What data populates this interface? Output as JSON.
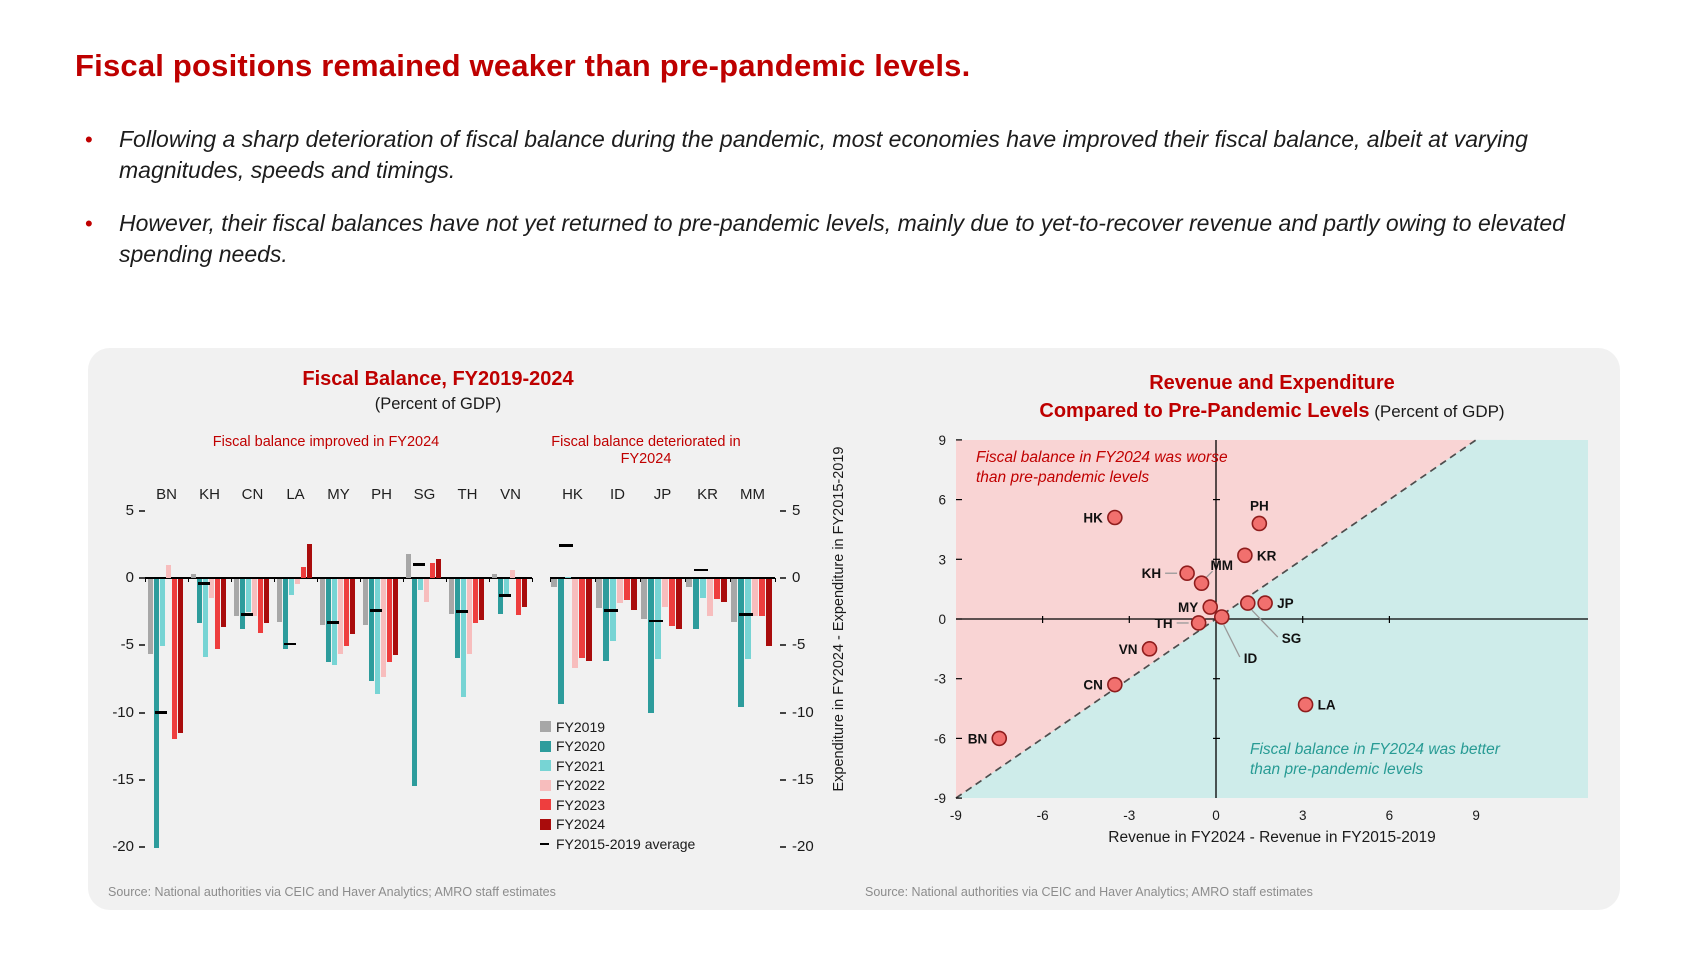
{
  "header": {
    "title": "Fiscal positions remained weaker than pre-pandemic levels.",
    "bullets": [
      "Following a sharp deterioration of fiscal balance during the pandemic, most economies have improved their fiscal balance, albeit at varying magnitudes, speeds and timings.",
      "However, their fiscal balances have not yet returned to pre-pandemic levels, mainly due to yet-to-recover revenue and partly owing to elevated spending needs."
    ]
  },
  "colors": {
    "accent_red": "#BE0000",
    "card_bg": "#F1F1F1",
    "fy2019": "#A7A7A7",
    "fy2020": "#2D9C9C",
    "fy2021": "#77D4D4",
    "fy2022": "#F7BDBD",
    "fy2023": "#EE3E3E",
    "fy2024": "#A90C0C",
    "average": "#000000",
    "worse_region": "#F9D4D4",
    "better_region": "#CEECEA",
    "marker_fill": "#F1706E",
    "marker_stroke": "#8F1D1D",
    "leader_line": "#999999"
  },
  "chart_data": [
    {
      "type": "bar",
      "title": "Fiscal Balance, FY2019-2024",
      "subtitle": "(Percent of GDP)",
      "ylim": [
        -20.5,
        5
      ],
      "yticks": [
        5,
        0,
        -5,
        -10,
        -15,
        -20
      ],
      "series": [
        "FY2019",
        "FY2020",
        "FY2021",
        "FY2022",
        "FY2023",
        "FY2024"
      ],
      "average_label": "FY2015-2019 average",
      "panels": [
        {
          "header": "Fiscal balance improved in FY2024",
          "countries": [
            {
              "code": "BN",
              "values": [
                -5.6,
                -20.0,
                -5.0,
                1.0,
                -11.9,
                -11.5
              ],
              "avg": -10.0
            },
            {
              "code": "KH",
              "values": [
                0.3,
                -3.3,
                -5.8,
                -1.4,
                -5.2,
                -3.6
              ],
              "avg": -0.4
            },
            {
              "code": "CN",
              "values": [
                -2.8,
                -3.7,
                -2.5,
                -2.8,
                -4.0,
                -3.3
              ],
              "avg": -2.7
            },
            {
              "code": "LA",
              "values": [
                -3.2,
                -5.2,
                -1.2,
                -0.4,
                0.8,
                2.5
              ],
              "avg": -4.9
            },
            {
              "code": "MY",
              "values": [
                -3.4,
                -6.2,
                -6.4,
                -5.6,
                -5.0,
                -4.1
              ],
              "avg": -3.3
            },
            {
              "code": "PH",
              "values": [
                -3.4,
                -7.6,
                -8.6,
                -7.3,
                -6.2,
                -5.7
              ],
              "avg": -2.4
            },
            {
              "code": "SG",
              "values": [
                1.8,
                -15.4,
                -0.8,
                -1.7,
                1.1,
                1.4
              ],
              "avg": 1.0
            },
            {
              "code": "TH",
              "values": [
                -2.6,
                -5.9,
                -8.8,
                -5.6,
                -3.3,
                -3.1
              ],
              "avg": -2.5
            },
            {
              "code": "VN",
              "values": [
                0.3,
                -2.6,
                -1.2,
                0.6,
                -2.7,
                -2.1
              ],
              "avg": -1.3
            }
          ]
        },
        {
          "header": "Fiscal balance deteriorated in FY2024",
          "countries": [
            {
              "code": "HK",
              "values": [
                -0.6,
                -9.3,
                0.1,
                -6.6,
                -5.9,
                -6.1
              ],
              "avg": 2.4
            },
            {
              "code": "ID",
              "values": [
                -2.2,
                -6.1,
                -4.6,
                -1.8,
                -1.6,
                -2.3
              ],
              "avg": -2.4
            },
            {
              "code": "JP",
              "values": [
                -3.0,
                -10.0,
                -6.0,
                -2.1,
                -3.5,
                -3.7
              ],
              "avg": -3.2
            },
            {
              "code": "KR",
              "values": [
                -0.6,
                -3.7,
                -1.4,
                -2.8,
                -1.5,
                -1.7
              ],
              "avg": 0.6
            },
            {
              "code": "MM",
              "values": [
                -3.2,
                -9.5,
                -6.0,
                -2.8,
                -2.8,
                -5.0
              ],
              "avg": -2.7
            }
          ]
        }
      ],
      "source": "Source: National authorities via CEIC and Haver Analytics; AMRO staff estimates"
    },
    {
      "type": "scatter",
      "title_line1": "Revenue and Expenditure",
      "title_line2": "Compared to Pre-Pandemic Levels",
      "title_suffix": " (Percent of GDP)",
      "xlabel": "Revenue in FY2024 - Revenue in FY2015-2019",
      "ylabel": "Expenditure in FY2024 - Expenditure in FY2015-2019",
      "xlim": [
        -9,
        9
      ],
      "ylim": [
        -9,
        9
      ],
      "xticks": [
        -9,
        -6,
        -3,
        0,
        3,
        6,
        9
      ],
      "yticks": [
        9,
        6,
        3,
        0,
        -3,
        -6,
        -9
      ],
      "points": [
        {
          "code": "BN",
          "x": -7.5,
          "y": -6.0,
          "label_pos": "left"
        },
        {
          "code": "CN",
          "x": -3.5,
          "y": -3.3,
          "label_pos": "left"
        },
        {
          "code": "VN",
          "x": -2.3,
          "y": -1.5,
          "label_pos": "left"
        },
        {
          "code": "TH",
          "x": -0.6,
          "y": -0.2,
          "label_pos": "leader-left"
        },
        {
          "code": "MY",
          "x": -0.2,
          "y": 0.6,
          "label_pos": "left"
        },
        {
          "code": "KH",
          "x": -1.0,
          "y": 2.3,
          "label_pos": "leader-left"
        },
        {
          "code": "MM",
          "x": -0.5,
          "y": 1.8,
          "label_pos": "leader-above-right"
        },
        {
          "code": "HK",
          "x": -3.5,
          "y": 5.1,
          "label_pos": "left"
        },
        {
          "code": "ID",
          "x": 0.2,
          "y": 0.1,
          "label_pos": "leader-below"
        },
        {
          "code": "SG",
          "x": 1.1,
          "y": 0.8,
          "label_pos": "leader-below-right"
        },
        {
          "code": "JP",
          "x": 1.7,
          "y": 0.8,
          "label_pos": "right"
        },
        {
          "code": "KR",
          "x": 1.0,
          "y": 3.2,
          "label_pos": "right"
        },
        {
          "code": "PH",
          "x": 1.5,
          "y": 4.8,
          "label_pos": "above"
        },
        {
          "code": "LA",
          "x": 3.1,
          "y": -4.3,
          "label_pos": "right"
        }
      ],
      "annotations": {
        "worse": [
          "Fiscal balance in FY2024 was worse",
          "than pre-pandemic levels"
        ],
        "better": [
          "Fiscal balance in FY2024 was better",
          "than pre-pandemic levels"
        ]
      },
      "source": "Source: National authorities via CEIC and Haver Analytics; AMRO staff estimates"
    }
  ]
}
